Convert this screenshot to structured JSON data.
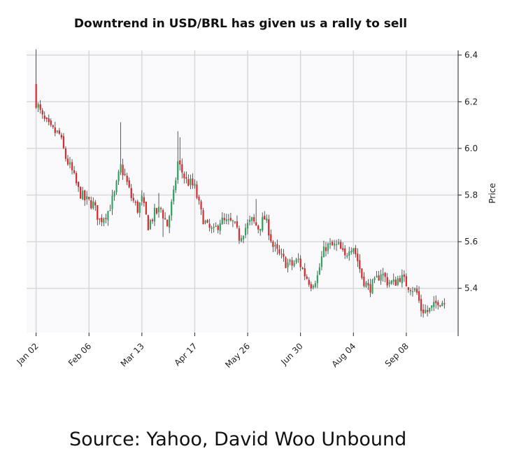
{
  "chart_data": {
    "type": "candlestick",
    "title": "Downtrend in USD/BRL has given us a rally to sell",
    "xlabel": "",
    "ylabel": "Price",
    "ylim": [
      5.21,
      6.42
    ],
    "y_ticks": [
      5.4,
      5.6,
      5.8,
      6.0,
      6.2,
      6.4
    ],
    "y_axis_side": "right",
    "x_tick_labels": [
      "Jan 02",
      "Feb 06",
      "Mar 13",
      "Apr 17",
      "May 26",
      "Jun 30",
      "Aug 04",
      "Sep 08"
    ],
    "x_tick_index": [
      0,
      25,
      50,
      75,
      100,
      125,
      150,
      175
    ],
    "x_range": [
      -4.5,
      199.5
    ],
    "grid": true,
    "colors": {
      "up": "#2ca25f",
      "down": "#d62728",
      "background": "#f9f8fa",
      "grid": "#d4d4d4"
    },
    "close_anchors": [
      [
        0,
        6.2
      ],
      [
        3,
        6.13
      ],
      [
        7,
        6.08
      ],
      [
        11,
        6.06
      ],
      [
        14,
        5.96
      ],
      [
        17,
        5.9
      ],
      [
        20,
        5.82
      ],
      [
        23,
        5.78
      ],
      [
        27,
        5.76
      ],
      [
        30,
        5.69
      ],
      [
        34,
        5.73
      ],
      [
        37,
        5.8
      ],
      [
        40,
        5.92
      ],
      [
        42,
        5.88
      ],
      [
        45,
        5.79
      ],
      [
        48,
        5.74
      ],
      [
        50,
        5.78
      ],
      [
        53,
        5.67
      ],
      [
        56,
        5.72
      ],
      [
        59,
        5.74
      ],
      [
        62,
        5.67
      ],
      [
        65,
        5.8
      ],
      [
        67,
        5.94
      ],
      [
        69,
        5.9
      ],
      [
        71,
        5.86
      ],
      [
        73,
        5.85
      ],
      [
        75,
        5.83
      ],
      [
        78,
        5.72
      ],
      [
        81,
        5.66
      ],
      [
        84,
        5.64
      ],
      [
        87,
        5.69
      ],
      [
        90,
        5.68
      ],
      [
        93,
        5.68
      ],
      [
        96,
        5.62
      ],
      [
        99,
        5.66
      ],
      [
        102,
        5.69
      ],
      [
        105,
        5.66
      ],
      [
        108,
        5.7
      ],
      [
        110,
        5.65
      ],
      [
        112,
        5.58
      ],
      [
        115,
        5.54
      ],
      [
        118,
        5.51
      ],
      [
        121,
        5.5
      ],
      [
        124,
        5.52
      ],
      [
        127,
        5.46
      ],
      [
        130,
        5.42
      ],
      [
        133,
        5.45
      ],
      [
        135,
        5.53
      ],
      [
        137,
        5.58
      ],
      [
        140,
        5.58
      ],
      [
        143,
        5.58
      ],
      [
        146,
        5.53
      ],
      [
        148,
        5.58
      ],
      [
        150,
        5.58
      ],
      [
        152,
        5.52
      ],
      [
        154,
        5.45
      ],
      [
        157,
        5.4
      ],
      [
        160,
        5.42
      ],
      [
        163,
        5.47
      ],
      [
        166,
        5.43
      ],
      [
        169,
        5.42
      ],
      [
        172,
        5.45
      ],
      [
        175,
        5.42
      ],
      [
        178,
        5.4
      ],
      [
        180,
        5.38
      ],
      [
        182,
        5.31
      ],
      [
        185,
        5.3
      ],
      [
        188,
        5.32
      ],
      [
        190,
        5.35
      ],
      [
        193,
        5.34
      ]
    ],
    "wick_scale": 0.012,
    "source": "Source: Yahoo, David Woo Unbound"
  }
}
